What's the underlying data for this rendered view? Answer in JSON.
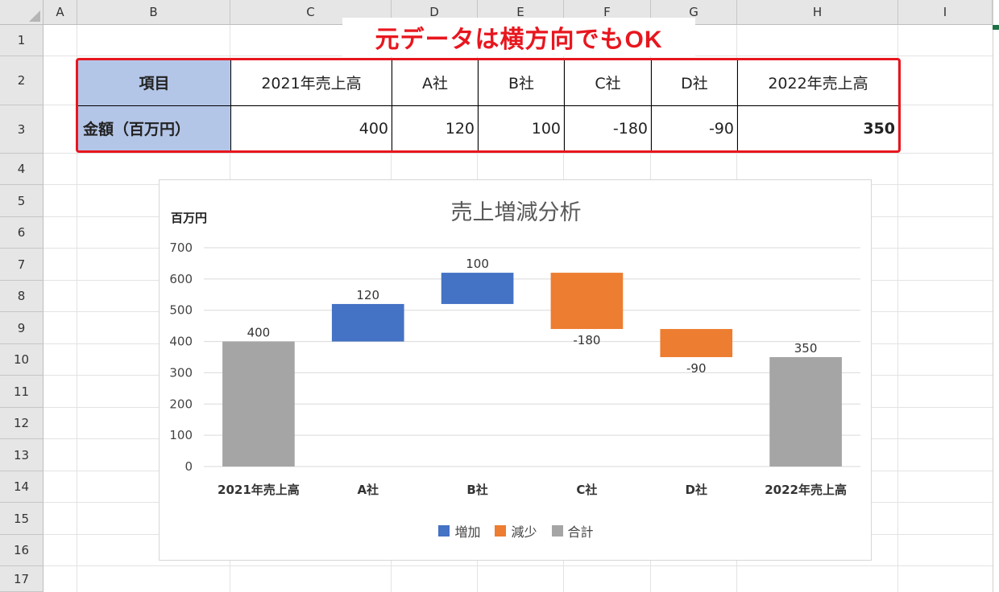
{
  "callout": "元データは横方向でもOK",
  "columns": [
    "A",
    "B",
    "C",
    "D",
    "E",
    "F",
    "G",
    "H",
    "I"
  ],
  "rows": [
    "1",
    "2",
    "3",
    "4",
    "5",
    "6",
    "7",
    "8",
    "9",
    "10",
    "11",
    "12",
    "13",
    "14",
    "15",
    "16",
    "17"
  ],
  "table": {
    "header_label": "項目",
    "headers": [
      "2021年売上高",
      "A社",
      "B社",
      "C社",
      "D社",
      "2022年売上高"
    ],
    "value_label": "金額（百万円）",
    "values": [
      "400",
      "120",
      "100",
      "-180",
      "-90",
      "350"
    ]
  },
  "chart_data": {
    "type": "waterfall",
    "title": "売上増減分析",
    "ylabel": "百万円",
    "categories": [
      "2021年売上高",
      "A社",
      "B社",
      "C社",
      "D社",
      "2022年売上高"
    ],
    "values": [
      400,
      120,
      100,
      -180,
      -90,
      350
    ],
    "kinds": [
      "total",
      "increase",
      "increase",
      "decrease",
      "decrease",
      "total"
    ],
    "data_labels": [
      "400",
      "120",
      "100",
      "-180",
      "-90",
      "350"
    ],
    "ylim": [
      0,
      700
    ],
    "yticks": [
      0,
      100,
      200,
      300,
      400,
      500,
      600,
      700
    ],
    "grid": true,
    "legend": {
      "position": "bottom",
      "entries": [
        {
          "label": "増加",
          "color": "#4472c4"
        },
        {
          "label": "減少",
          "color": "#ed7d31"
        },
        {
          "label": "合計",
          "color": "#a5a5a5"
        }
      ]
    },
    "colors": {
      "increase": "#4472c4",
      "decrease": "#ed7d31",
      "total": "#a5a5a5"
    }
  }
}
